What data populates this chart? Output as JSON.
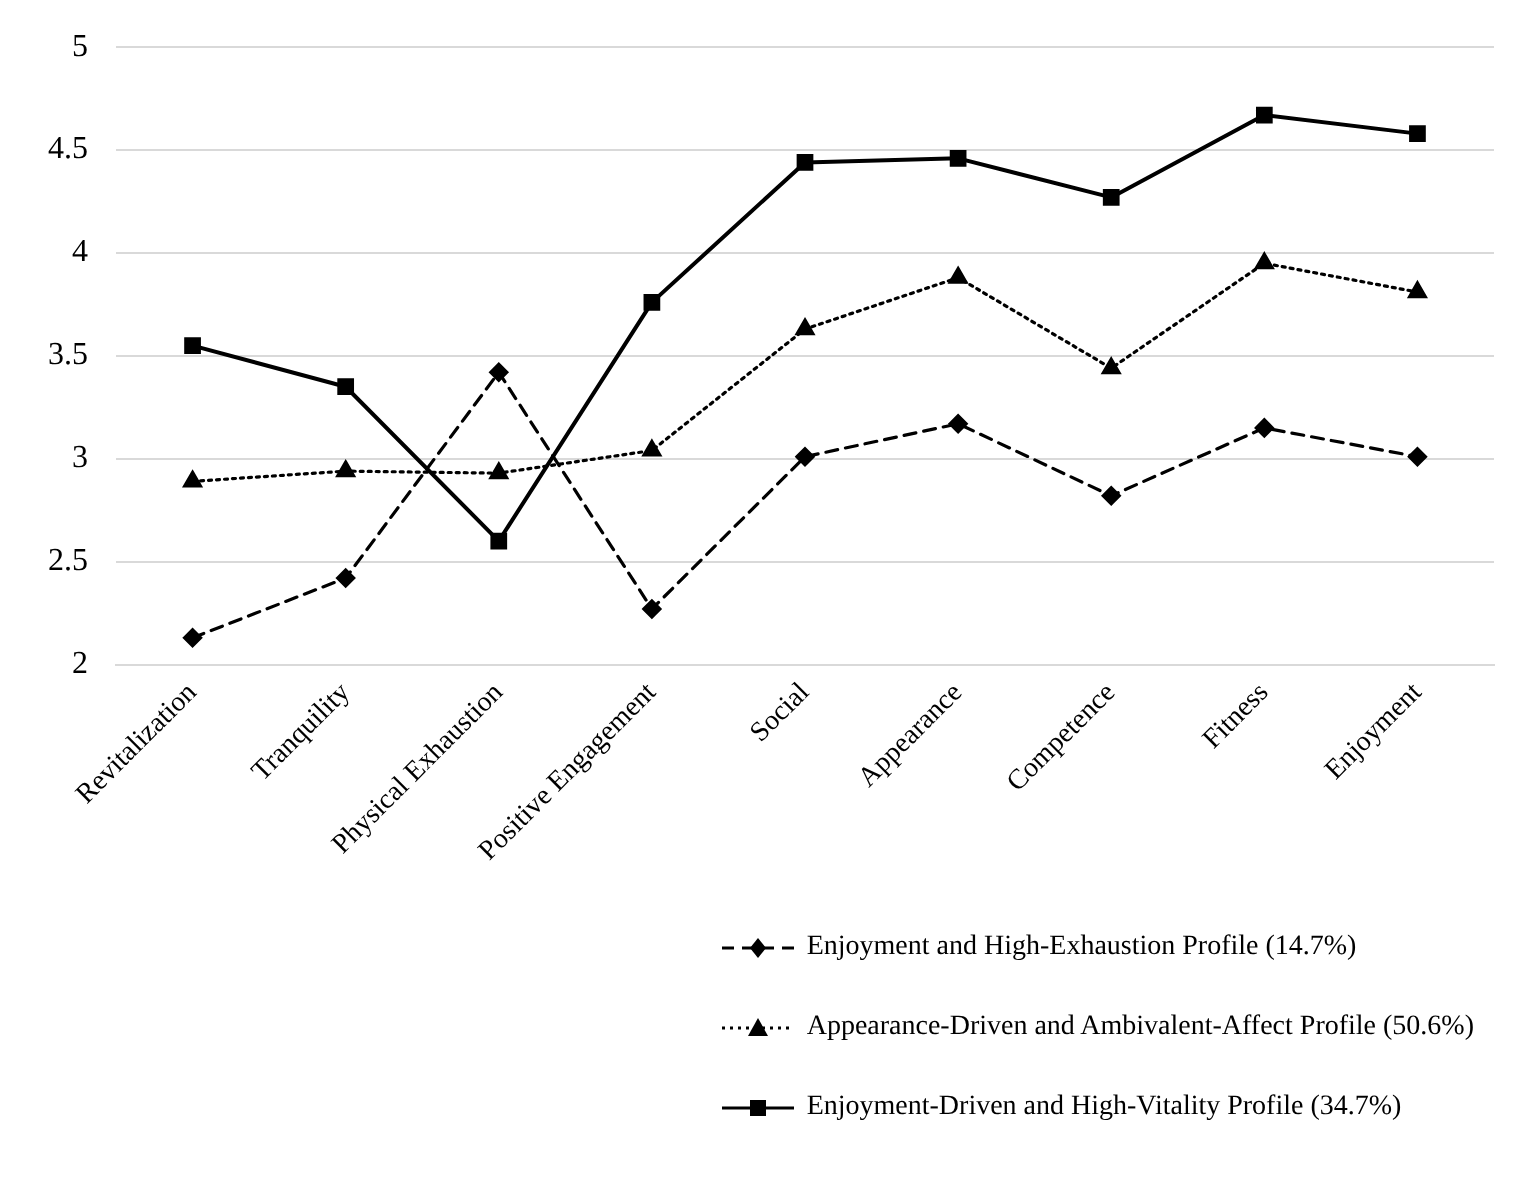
{
  "chart_data": {
    "type": "line",
    "categories": [
      "Revitalization",
      "Tranquility",
      "Physical Exhaustion",
      "Positive Engagement",
      "Social",
      "Appearance",
      "Competence",
      "Fitness",
      "Enjoyment"
    ],
    "ylim": [
      2,
      5
    ],
    "yticks": [
      2,
      2.5,
      3,
      3.5,
      4,
      4.5,
      5
    ],
    "grid": "y",
    "legend": "bottom right",
    "series": [
      {
        "name": "Enjoyment and High-Exhaustion Profile (14.7%)",
        "color": "#000000",
        "marker": "diamond",
        "line_style": "dashed",
        "values": [
          2.13,
          2.42,
          3.42,
          2.27,
          3.01,
          3.17,
          2.82,
          3.15,
          3.01
        ]
      },
      {
        "name": "Appearance-Driven and Ambivalent-Affect Profile (50.6%)",
        "color": "#000000",
        "marker": "triangle",
        "line_style": "dotted",
        "values": [
          2.89,
          2.94,
          2.93,
          3.04,
          3.63,
          3.88,
          3.44,
          3.95,
          3.81
        ]
      },
      {
        "name": "Enjoyment-Driven and High-Vitality Profile (34.7%)",
        "color": "#000000",
        "marker": "square",
        "line_style": "solid",
        "values": [
          3.55,
          3.35,
          2.6,
          3.76,
          4.44,
          4.46,
          4.27,
          4.67,
          4.58
        ]
      }
    ]
  }
}
